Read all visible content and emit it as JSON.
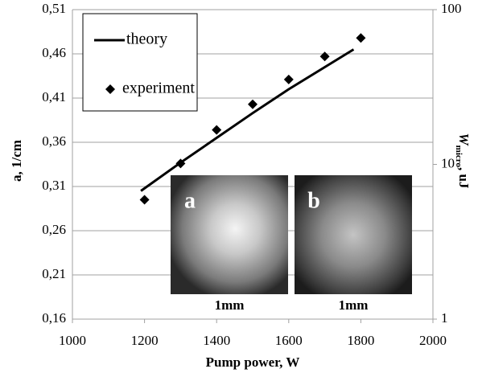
{
  "chart_data": {
    "type": "line",
    "x_label": "Pump power, W",
    "y_label": "a, 1/cm",
    "y2_label": {
      "main": "W",
      "sub": "micro",
      "unit": ", uJ"
    },
    "xlim": [
      1000,
      2000
    ],
    "xticks": [
      1000,
      1200,
      1400,
      1600,
      1800,
      2000
    ],
    "ylim": [
      0.16,
      0.51
    ],
    "yticks": [
      {
        "value": 0.16,
        "label": "0,16"
      },
      {
        "value": 0.21,
        "label": "0,21"
      },
      {
        "value": 0.26,
        "label": "0,26"
      },
      {
        "value": 0.31,
        "label": "0,31"
      },
      {
        "value": 0.36,
        "label": "0,36"
      },
      {
        "value": 0.41,
        "label": "0,41"
      },
      {
        "value": 0.46,
        "label": "0,46"
      },
      {
        "value": 0.51,
        "label": "0,51"
      }
    ],
    "y2lim": [
      1,
      100
    ],
    "y2ticks": [
      1,
      10,
      100
    ],
    "y2_log": true,
    "grid": true,
    "legend": "upper left",
    "series": [
      {
        "name": "theory",
        "kind": "line",
        "color": "#000000",
        "x": [
          1190,
          1300,
          1400,
          1500,
          1600,
          1700,
          1780
        ],
        "values": [
          0.305,
          0.337,
          0.365,
          0.393,
          0.42,
          0.445,
          0.465
        ]
      },
      {
        "name": "experiment",
        "kind": "scatter",
        "color": "#000000",
        "x": [
          1200,
          1300,
          1400,
          1500,
          1600,
          1700,
          1800
        ],
        "values": [
          0.295,
          0.336,
          0.374,
          0.403,
          0.431,
          0.457,
          0.478
        ]
      }
    ],
    "insets": [
      {
        "label": "a",
        "scale": "1mm"
      },
      {
        "label": "b",
        "scale": "1mm"
      }
    ]
  }
}
